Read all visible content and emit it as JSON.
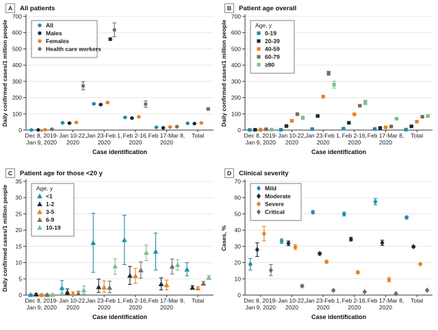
{
  "figure": {
    "background": "#ffffff"
  },
  "palette": {
    "teal": "#1e8fa8",
    "dark_navy": "#1c2b36",
    "orange": "#e8821e",
    "brown_gray": "#7a6c5d",
    "green": "#7fbd8e",
    "grid": "#e7e7e7",
    "axis": "#333333"
  },
  "panels": [
    {
      "letter": "A",
      "title": "All patients"
    },
    {
      "letter": "B",
      "title": "Patient age overall"
    },
    {
      "letter": "C",
      "title": "Patient age for those <20 y"
    },
    {
      "letter": "D",
      "title": "Clinical severity"
    }
  ],
  "chart_data": [
    {
      "type": "scatter",
      "panel": "A",
      "title": "All patients",
      "marker": "circle",
      "xlabel": "Case identification",
      "ylabel": "Daily confirmed cases/1 million people",
      "ylim": [
        0,
        700
      ],
      "ytick_step": 100,
      "grid": true,
      "legend_title": null,
      "legend_position": "top-left",
      "categories": [
        [
          "Dec 8, 2019-",
          "Jan 9, 2020"
        ],
        [
          "Jan 10-22,",
          "2020"
        ],
        [
          "Jan 23-Feb 1,",
          "2020"
        ],
        [
          "Feb 2-16,",
          "2020"
        ],
        [
          "Feb 17-Mar 8,",
          "2020"
        ],
        [
          "Total",
          ""
        ]
      ],
      "series": [
        {
          "name": "All",
          "color": "#1e8fa8",
          "values": [
            1,
            45,
            162,
            78,
            17,
            42
          ],
          "lo": [
            0,
            43,
            158,
            75,
            15,
            40
          ],
          "hi": [
            2,
            47,
            166,
            81,
            19,
            44
          ]
        },
        {
          "name": "Males",
          "color": "#1c2b36",
          "values": [
            1,
            43,
            157,
            74,
            14,
            40
          ],
          "lo": [
            0,
            41,
            153,
            71,
            12,
            38
          ],
          "hi": [
            2,
            45,
            161,
            77,
            16,
            42
          ]
        },
        {
          "name": "Females",
          "color": "#e8821e",
          "values": [
            2,
            47,
            170,
            82,
            19,
            44
          ],
          "lo": [
            1,
            45,
            166,
            79,
            17,
            42
          ],
          "hi": [
            3,
            49,
            174,
            85,
            21,
            46
          ]
        },
        {
          "name": "Health care workers",
          "color": "#7a6c5d",
          "values": [
            5,
            272,
            617,
            160,
            21,
            130
          ],
          "lo": [
            3,
            248,
            575,
            140,
            17,
            122
          ],
          "hi": [
            7,
            298,
            660,
            180,
            25,
            138
          ]
        }
      ],
      "extra_points": [
        {
          "category": 2,
          "value": 560,
          "color": "#1c2b36",
          "marker": "square",
          "dx": 9,
          "note": "unlabeled square marker below health care worker CI"
        }
      ]
    },
    {
      "type": "scatter",
      "panel": "B",
      "title": "Patient age overall",
      "marker": "square",
      "xlabel": "Case identification",
      "ylabel": "Daily confirmed cases/1 million people",
      "ylim": [
        0,
        700
      ],
      "ytick_step": 100,
      "grid": true,
      "legend_title": "Age, y",
      "legend_position": "top-left",
      "categories": [
        [
          "Dec 8, 2019-",
          "Jan 9, 2020"
        ],
        [
          "Jan 10-22,",
          "2020"
        ],
        [
          "Jan 23-Feb 1,",
          "2020"
        ],
        [
          "Feb 2-16,",
          "2020"
        ],
        [
          "Feb 17-Mar 8,",
          "2020"
        ],
        [
          "Total",
          ""
        ]
      ],
      "series": [
        {
          "name": "0-19",
          "color": "#1e8fa8",
          "values": [
            1,
            2,
            6,
            9,
            7,
            3
          ],
          "lo": [
            0,
            1,
            4,
            7,
            5,
            2
          ],
          "hi": [
            2,
            3,
            8,
            11,
            9,
            4
          ]
        },
        {
          "name": "20-39",
          "color": "#1c2b36",
          "values": [
            2,
            25,
            87,
            45,
            13,
            23
          ],
          "lo": [
            1,
            23,
            83,
            42,
            11,
            21
          ],
          "hi": [
            3,
            27,
            91,
            48,
            15,
            25
          ]
        },
        {
          "name": "40-59",
          "color": "#e8821e",
          "values": [
            3,
            57,
            206,
            97,
            17,
            52
          ],
          "lo": [
            2,
            54,
            200,
            93,
            15,
            50
          ],
          "hi": [
            4,
            60,
            212,
            101,
            19,
            54
          ]
        },
        {
          "name": "60-79",
          "color": "#7a6c5d",
          "values": [
            5,
            98,
            350,
            150,
            22,
            82
          ],
          "lo": [
            3,
            93,
            338,
            144,
            19,
            79
          ],
          "hi": [
            7,
            103,
            362,
            156,
            25,
            85
          ]
        },
        {
          "name": "≥80",
          "color": "#7fbd8e",
          "values": [
            3,
            76,
            280,
            170,
            70,
            87
          ],
          "lo": [
            1,
            66,
            258,
            156,
            62,
            82
          ],
          "hi": [
            5,
            86,
            301,
            184,
            78,
            92
          ]
        }
      ],
      "extra_points": []
    },
    {
      "type": "scatter",
      "panel": "C",
      "title": "Patient age for those <20 y",
      "marker": "triangle",
      "xlabel": "Case identification",
      "ylabel": "Daily confirmed cases/1 million people",
      "ylim": [
        0,
        35
      ],
      "ytick_step": 5,
      "grid": true,
      "legend_title": "Age, y",
      "legend_position": "top-left",
      "categories": [
        [
          "Dec 8, 2019-",
          "Jan 9, 2020"
        ],
        [
          "Jan 10-22,",
          "2020"
        ],
        [
          "Jan 23-Feb 1,",
          "2020"
        ],
        [
          "Feb 2-16,",
          "2020"
        ],
        [
          "Feb 17-Mar 8,",
          "2020"
        ],
        [
          "Total",
          ""
        ]
      ],
      "series": [
        {
          "name": "<1",
          "color": "#1e8fa8",
          "values": [
            0.1,
            2.2,
            16.1,
            17.0,
            13.4,
            7.9
          ],
          "lo": [
            0,
            0.5,
            7.0,
            9.4,
            7.7,
            5.9
          ],
          "hi": [
            0.3,
            4.5,
            25.2,
            24.6,
            19.1,
            10.0
          ]
        },
        {
          "name": "1-2",
          "color": "#1c2b36",
          "values": [
            0.2,
            0.9,
            2.5,
            6.0,
            3.4,
            2.3
          ],
          "lo": [
            0,
            0.2,
            0.8,
            3.3,
            1.6,
            1.8
          ],
          "hi": [
            0.5,
            1.9,
            4.9,
            8.8,
            5.3,
            2.9
          ]
        },
        {
          "name": "3-5",
          "color": "#e8821e",
          "values": [
            0.1,
            0.4,
            2.4,
            5.9,
            3.1,
            2.1
          ],
          "lo": [
            0,
            0,
            0.9,
            3.6,
            1.6,
            1.7
          ],
          "hi": [
            0.3,
            1.0,
            4.4,
            8.2,
            4.6,
            2.6
          ]
        },
        {
          "name": "6-9",
          "color": "#7a6c5d",
          "values": [
            0.1,
            0.5,
            2.3,
            7.7,
            8.8,
            3.6
          ],
          "lo": [
            0,
            0,
            0.7,
            5.2,
            6.5,
            3.0
          ],
          "hi": [
            0.3,
            1.2,
            4.3,
            10.2,
            11.1,
            4.2
          ]
        },
        {
          "name": "10-19",
          "color": "#7fbd8e",
          "values": [
            0.1,
            1.5,
            8.9,
            13.1,
            9.3,
            5.4
          ],
          "lo": [
            0,
            0.3,
            6.4,
            10.6,
            7.7,
            4.8
          ],
          "hi": [
            0.3,
            2.8,
            11.2,
            15.4,
            10.9,
            6.0
          ]
        }
      ],
      "extra_points": []
    },
    {
      "type": "scatter",
      "panel": "D",
      "title": "Clinical severity",
      "marker": "diamond",
      "xlabel": "Case identification",
      "ylabel": "Cases, %",
      "ylim": [
        0,
        70
      ],
      "ytick_step": 10,
      "grid": true,
      "legend_title": null,
      "legend_position": "top-left",
      "categories": [
        [
          "Dec 8, 2019-",
          "Jan 9, 2020"
        ],
        [
          "Jan 10-22,",
          "2020"
        ],
        [
          "Jan 23-Feb 1,",
          "2020"
        ],
        [
          "Feb 2-16,",
          "2020"
        ],
        [
          "Feb 17-Mar 8,",
          "2020"
        ],
        [
          "Total",
          ""
        ]
      ],
      "series": [
        {
          "name": "Mild",
          "color": "#1e8fa8",
          "values": [
            19.0,
            33.2,
            51.0,
            49.9,
            57.5,
            47.8
          ],
          "lo": [
            15.5,
            31.8,
            50.2,
            48.8,
            55.6,
            47.0
          ],
          "hi": [
            22.5,
            34.6,
            51.9,
            51.0,
            59.4,
            48.6
          ]
        },
        {
          "name": "Moderate",
          "color": "#1c2b36",
          "values": [
            28.0,
            31.9,
            25.5,
            34.4,
            32.2,
            29.8
          ],
          "lo": [
            23.8,
            30.5,
            24.8,
            33.4,
            30.6,
            29.2
          ],
          "hi": [
            32.2,
            33.3,
            26.3,
            35.5,
            33.8,
            30.4
          ]
        },
        {
          "name": "Severe",
          "color": "#e8821e",
          "values": [
            37.8,
            29.5,
            20.5,
            14.0,
            9.4,
            19.1
          ],
          "lo": [
            33.4,
            28.2,
            19.8,
            13.3,
            8.2,
            18.6
          ],
          "hi": [
            42.3,
            30.9,
            21.2,
            14.7,
            10.7,
            19.6
          ]
        },
        {
          "name": "Critical",
          "color": "#7a6c5d",
          "values": [
            15.3,
            5.6,
            2.9,
            2.0,
            0.9,
            3.0
          ],
          "lo": [
            12.0,
            5.0,
            2.5,
            1.7,
            0.6,
            2.7
          ],
          "hi": [
            18.8,
            6.3,
            3.3,
            2.4,
            1.2,
            3.3
          ]
        }
      ],
      "extra_points": []
    }
  ]
}
